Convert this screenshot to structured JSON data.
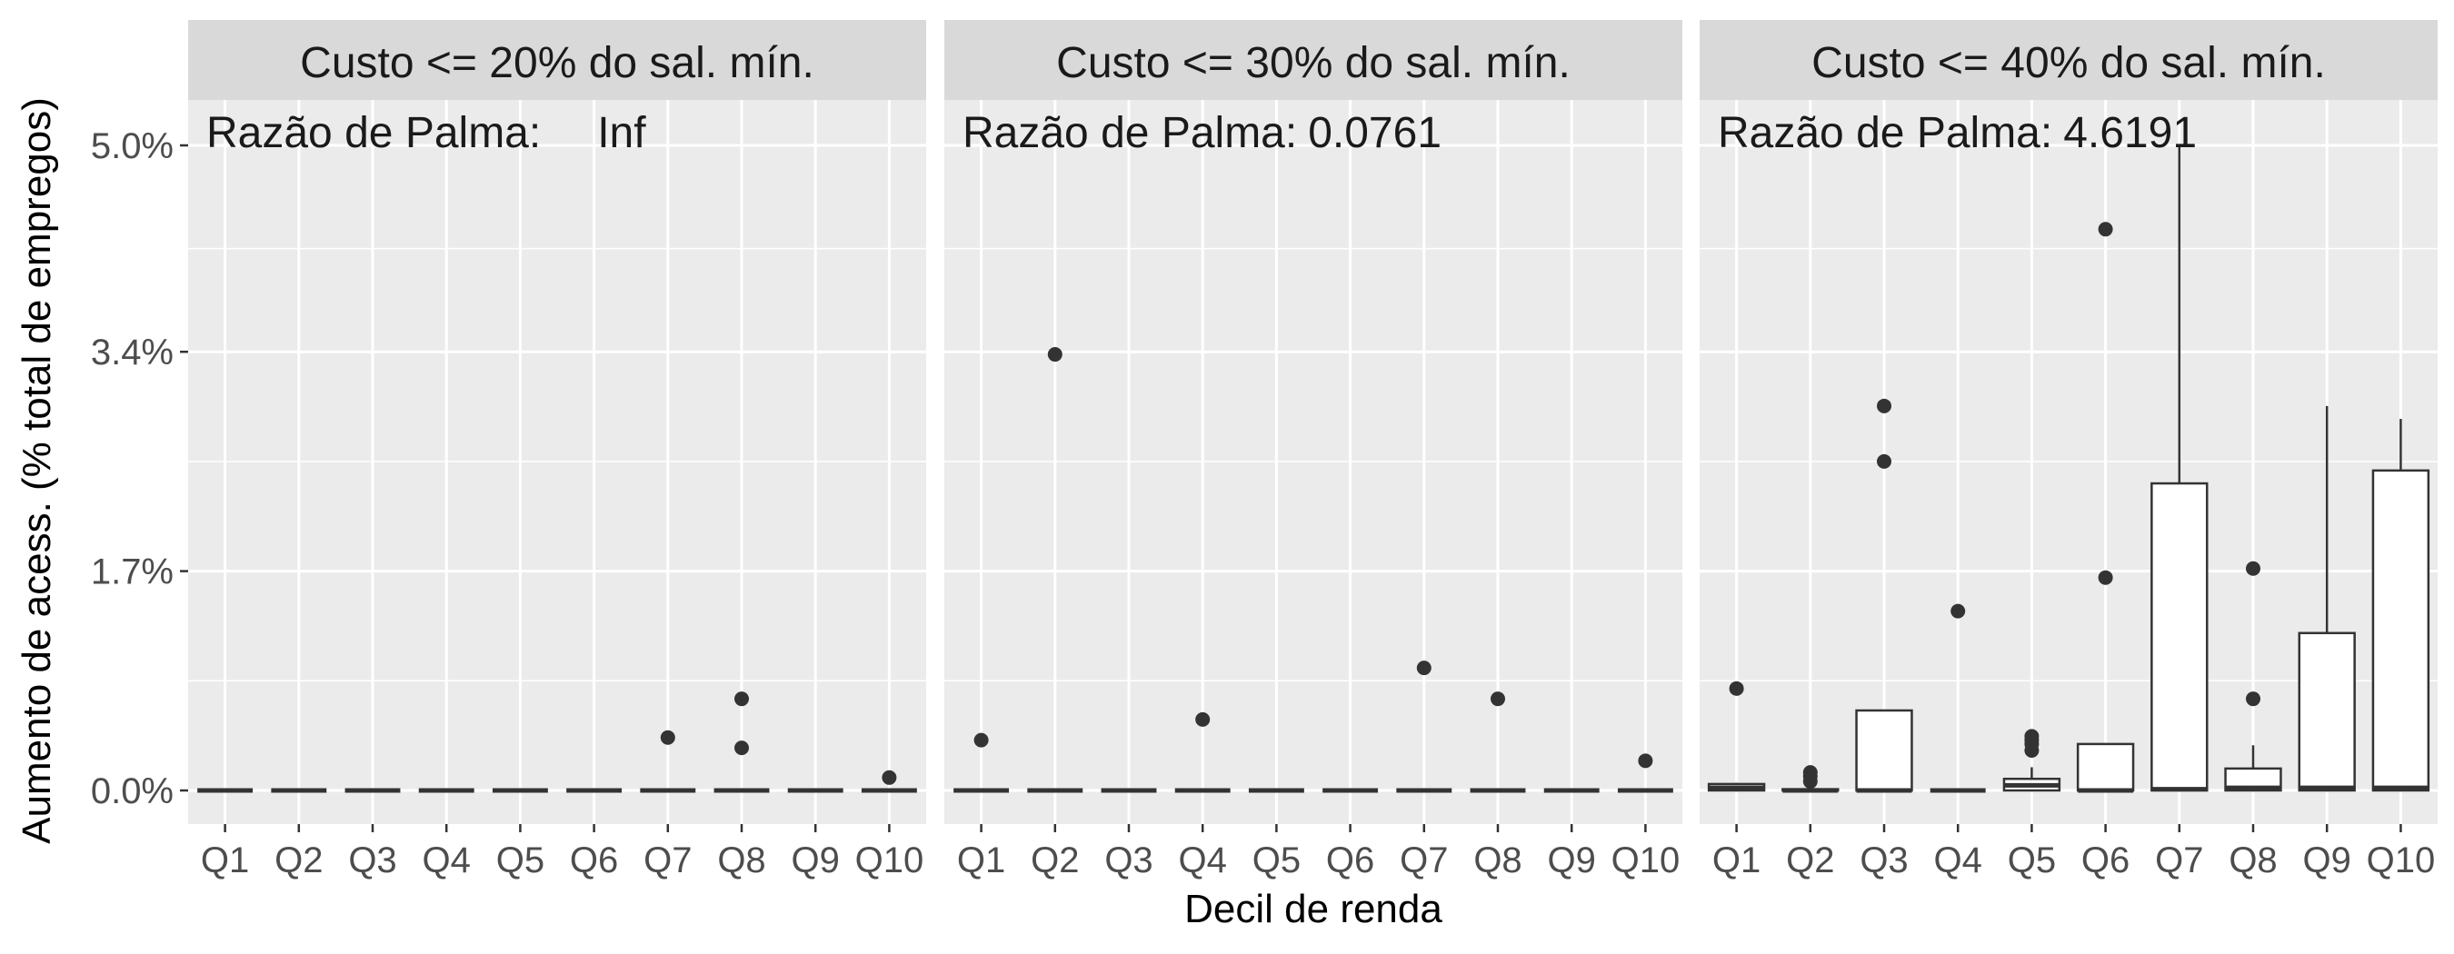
{
  "chart_data": {
    "type": "box",
    "xlabel": "Decil de renda",
    "ylabel": "Aumento de acess. (% total de empregos)",
    "y_ticks": [
      "0.0%",
      "1.7%",
      "3.4%",
      "5.0%"
    ],
    "y_tick_values": [
      0.0,
      1.7,
      3.4,
      5.0
    ],
    "ylim": [
      -0.25,
      5.3
    ],
    "categories": [
      "Q1",
      "Q2",
      "Q3",
      "Q4",
      "Q5",
      "Q6",
      "Q7",
      "Q8",
      "Q9",
      "Q10"
    ],
    "panels": [
      {
        "title": "Custo <= 20% do sal. mín.",
        "annotation_label": "Razão de Palma:",
        "annotation_value": "Inf",
        "boxes": [
          {
            "category": "Q1",
            "q1": 0,
            "median": 0,
            "q3": 0,
            "whisker_low": 0,
            "whisker_high": 0,
            "outliers": []
          },
          {
            "category": "Q2",
            "q1": 0,
            "median": 0,
            "q3": 0,
            "whisker_low": 0,
            "whisker_high": 0,
            "outliers": []
          },
          {
            "category": "Q3",
            "q1": 0,
            "median": 0,
            "q3": 0,
            "whisker_low": 0,
            "whisker_high": 0,
            "outliers": []
          },
          {
            "category": "Q4",
            "q1": 0,
            "median": 0,
            "q3": 0,
            "whisker_low": 0,
            "whisker_high": 0,
            "outliers": []
          },
          {
            "category": "Q5",
            "q1": 0,
            "median": 0,
            "q3": 0,
            "whisker_low": 0,
            "whisker_high": 0,
            "outliers": []
          },
          {
            "category": "Q6",
            "q1": 0,
            "median": 0,
            "q3": 0,
            "whisker_low": 0,
            "whisker_high": 0,
            "outliers": []
          },
          {
            "category": "Q7",
            "q1": 0,
            "median": 0,
            "q3": 0,
            "whisker_low": 0,
            "whisker_high": 0,
            "outliers": [
              0.41
            ]
          },
          {
            "category": "Q8",
            "q1": 0,
            "median": 0,
            "q3": 0,
            "whisker_low": 0,
            "whisker_high": 0,
            "outliers": [
              0.71,
              0.33
            ]
          },
          {
            "category": "Q9",
            "q1": 0,
            "median": 0,
            "q3": 0,
            "whisker_low": 0,
            "whisker_high": 0,
            "outliers": []
          },
          {
            "category": "Q10",
            "q1": 0,
            "median": 0,
            "q3": 0,
            "whisker_low": 0,
            "whisker_high": 0,
            "outliers": [
              0.1
            ]
          }
        ]
      },
      {
        "title": "Custo <= 30% do sal. mín.",
        "annotation_label": "Razão de Palma:",
        "annotation_value": "0.0761",
        "boxes": [
          {
            "category": "Q1",
            "q1": 0,
            "median": 0,
            "q3": 0,
            "whisker_low": 0,
            "whisker_high": 0,
            "outliers": [
              0.39
            ]
          },
          {
            "category": "Q2",
            "q1": 0,
            "median": 0,
            "q3": 0,
            "whisker_low": 0,
            "whisker_high": 0,
            "outliers": [
              3.38
            ]
          },
          {
            "category": "Q3",
            "q1": 0,
            "median": 0,
            "q3": 0,
            "whisker_low": 0,
            "whisker_high": 0,
            "outliers": []
          },
          {
            "category": "Q4",
            "q1": 0,
            "median": 0,
            "q3": 0,
            "whisker_low": 0,
            "whisker_high": 0,
            "outliers": [
              0.55
            ]
          },
          {
            "category": "Q5",
            "q1": 0,
            "median": 0,
            "q3": 0,
            "whisker_low": 0,
            "whisker_high": 0,
            "outliers": []
          },
          {
            "category": "Q6",
            "q1": 0,
            "median": 0,
            "q3": 0,
            "whisker_low": 0,
            "whisker_high": 0,
            "outliers": []
          },
          {
            "category": "Q7",
            "q1": 0,
            "median": 0,
            "q3": 0,
            "whisker_low": 0,
            "whisker_high": 0,
            "outliers": [
              0.95
            ]
          },
          {
            "category": "Q8",
            "q1": 0,
            "median": 0,
            "q3": 0,
            "whisker_low": 0,
            "whisker_high": 0,
            "outliers": [
              0.71
            ]
          },
          {
            "category": "Q9",
            "q1": 0,
            "median": 0,
            "q3": 0,
            "whisker_low": 0,
            "whisker_high": 0,
            "outliers": []
          },
          {
            "category": "Q10",
            "q1": 0,
            "median": 0,
            "q3": 0,
            "whisker_low": 0,
            "whisker_high": 0,
            "outliers": [
              0.23
            ]
          }
        ]
      },
      {
        "title": "Custo <= 40% do sal. mín.",
        "annotation_label": "Razão de Palma:",
        "annotation_value": "4.6191",
        "boxes": [
          {
            "category": "Q1",
            "q1": 0,
            "median": 0.02,
            "q3": 0.05,
            "whisker_low": 0,
            "whisker_high": 0.06,
            "outliers": [
              0.79
            ]
          },
          {
            "category": "Q2",
            "q1": 0,
            "median": 0,
            "q3": 0.01,
            "whisker_low": 0,
            "whisker_high": 0.02,
            "outliers": [
              0.07,
              0.11,
              0.14
            ]
          },
          {
            "category": "Q3",
            "q1": 0,
            "median": 0,
            "q3": 0.62,
            "whisker_low": 0,
            "whisker_high": 0.62,
            "outliers": [
              2.98,
              2.55
            ]
          },
          {
            "category": "Q4",
            "q1": 0,
            "median": 0,
            "q3": 0,
            "whisker_low": 0,
            "whisker_high": 0,
            "outliers": [
              1.39
            ]
          },
          {
            "category": "Q5",
            "q1": 0,
            "median": 0.04,
            "q3": 0.09,
            "whisker_low": 0,
            "whisker_high": 0.18,
            "outliers": [
              0.31,
              0.36,
              0.39,
              0.42
            ]
          },
          {
            "category": "Q6",
            "q1": 0,
            "median": 0,
            "q3": 0.36,
            "whisker_low": 0,
            "whisker_high": 0.36,
            "outliers": [
              4.35,
              1.65
            ]
          },
          {
            "category": "Q7",
            "q1": 0,
            "median": 0.01,
            "q3": 2.38,
            "whisker_low": 0,
            "whisker_high": 5.0,
            "outliers": []
          },
          {
            "category": "Q8",
            "q1": 0,
            "median": 0.02,
            "q3": 0.17,
            "whisker_low": 0,
            "whisker_high": 0.35,
            "outliers": [
              1.72,
              0.71
            ]
          },
          {
            "category": "Q9",
            "q1": 0,
            "median": 0.02,
            "q3": 1.22,
            "whisker_low": 0,
            "whisker_high": 2.98,
            "outliers": []
          },
          {
            "category": "Q10",
            "q1": 0,
            "median": 0.02,
            "q3": 2.48,
            "whisker_low": 0,
            "whisker_high": 2.88,
            "outliers": []
          }
        ]
      }
    ]
  },
  "colors": {
    "panel_background": "#ebebeb",
    "strip_background": "#d9d9d9",
    "grid": "#ffffff",
    "box_fill": "#ffffff",
    "box_line": "#333333",
    "outlier": "#333333",
    "tick_text": "#4d4d4d",
    "text": "#1a1a1a"
  }
}
